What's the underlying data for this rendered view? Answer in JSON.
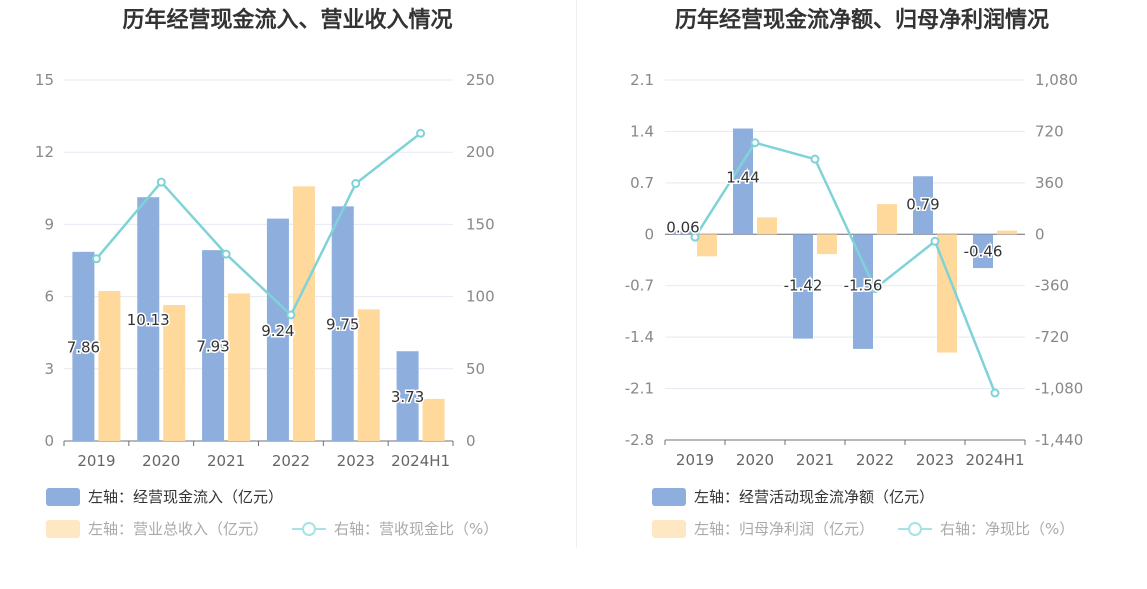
{
  "chart_data": [
    {
      "type": "bar+line",
      "title": "历年经营现金流入、营业收入情况",
      "categories": [
        "2019",
        "2020",
        "2021",
        "2022",
        "2023",
        "2024H1"
      ],
      "left_axis": {
        "ticks": [
          "0",
          "3",
          "6",
          "9",
          "12",
          "15"
        ],
        "ylim": [
          0,
          15
        ]
      },
      "right_axis": {
        "ticks": [
          "0",
          "50",
          "100",
          "150",
          "200",
          "250"
        ],
        "ylim": [
          0,
          250
        ]
      },
      "series": [
        {
          "name": "左轴：经营现金流入（亿元）",
          "axis": "left",
          "kind": "bar",
          "color": "#8eaedd",
          "values": [
            7.86,
            10.13,
            7.93,
            9.24,
            9.75,
            3.73
          ],
          "labels": [
            "7.86",
            "10.13",
            "7.93",
            "9.24",
            "9.75",
            "3.73"
          ]
        },
        {
          "name": "左轴：营业总收入（亿元）",
          "axis": "left",
          "kind": "bar",
          "color": "#fed99b",
          "values": [
            6.23,
            5.65,
            6.13,
            10.58,
            5.47,
            1.75
          ]
        },
        {
          "name": "右轴：营收现金比（%）",
          "axis": "right",
          "kind": "line",
          "color": "#7fd3d8",
          "values": [
            126.2,
            179.3,
            129.4,
            87.3,
            178.3,
            213.1
          ]
        }
      ],
      "legend_text_colors": [
        "#333333",
        "#aaaaaa",
        "#aaaaaa"
      ]
    },
    {
      "type": "bar+line",
      "title": "历年经营现金流净额、归母净利润情况",
      "categories": [
        "2019",
        "2020",
        "2021",
        "2022",
        "2023",
        "2024H1"
      ],
      "left_axis": {
        "ticks": [
          "-2.8",
          "-2.1",
          "-1.4",
          "-0.7",
          "0",
          "0.7",
          "1.4",
          "2.1"
        ],
        "ylim": [
          -2.8,
          2.1
        ]
      },
      "right_axis": {
        "ticks": [
          "-1,440",
          "-1,080",
          "-720",
          "-360",
          "0",
          "360",
          "720",
          "1,080"
        ],
        "ylim": [
          -1440,
          1080
        ]
      },
      "series": [
        {
          "name": "左轴：经营活动现金流净额（亿元）",
          "axis": "left",
          "kind": "bar",
          "color": "#8eaedd",
          "values": [
            0.06,
            1.44,
            -1.42,
            -1.56,
            0.79,
            -0.46
          ],
          "labels": [
            "0.06",
            "1.44",
            "-1.42",
            "-1.56",
            "0.79",
            "-0.46"
          ]
        },
        {
          "name": "左轴：归母净利润（亿元）",
          "axis": "left",
          "kind": "bar",
          "color": "#fed99b",
          "values": [
            -0.3,
            0.23,
            -0.27,
            0.41,
            -1.61,
            0.05
          ]
        },
        {
          "name": "右轴：净现比（%）",
          "axis": "right",
          "kind": "line",
          "color": "#7fd3d8",
          "values": [
            -20,
            641,
            526,
            -380,
            -49,
            -1111
          ]
        }
      ],
      "legend_text_colors": [
        "#333333",
        "#aaaaaa",
        "#aaaaaa"
      ]
    }
  ]
}
